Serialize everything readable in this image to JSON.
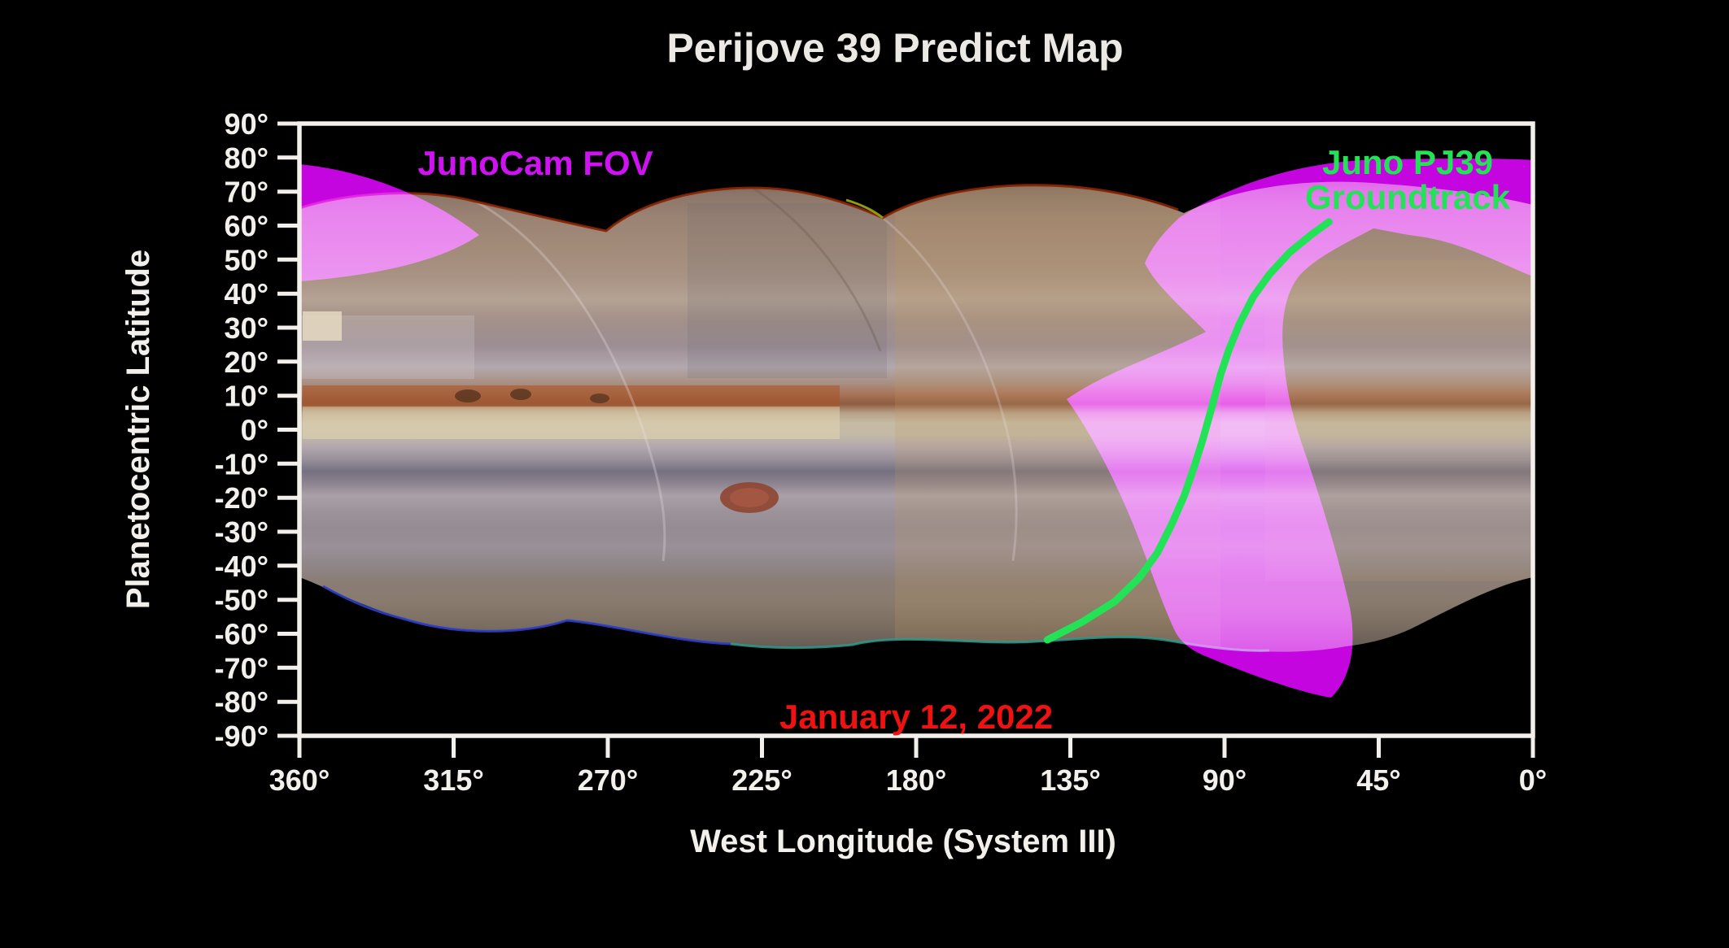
{
  "figure": {
    "title": "Perijove 39 Predict Map",
    "title_color": "#ece9e4"
  },
  "axes": {
    "x_label": "West Longitude (System III)",
    "y_label": "Planetocentric Latitude",
    "label_color": "#f3f0ec",
    "tick_color": "#f3f0ec"
  },
  "annotations": {
    "fov": {
      "label": "JunoCam FOV",
      "color": "#cf12f2"
    },
    "groundtrack": {
      "label_line1": "Juno PJ39",
      "label_line2": "Groundtrack",
      "color": "#22e355"
    },
    "date": {
      "label": "January 12, 2022",
      "color": "#ef1212"
    }
  },
  "chart_data": {
    "type": "line",
    "title": "Perijove 39 Predict Map",
    "xlabel": "West Longitude (System III)",
    "ylabel": "Planetocentric Latitude",
    "xlim": [
      360,
      0
    ],
    "ylim": [
      -90,
      90
    ],
    "grid": false,
    "x_tick_values": [
      360,
      315,
      270,
      225,
      180,
      135,
      90,
      45,
      0
    ],
    "x_tick_labels": [
      "360°",
      "315°",
      "270°",
      "225°",
      "180°",
      "135°",
      "90°",
      "45°",
      "0°"
    ],
    "y_tick_values": [
      90,
      80,
      70,
      60,
      50,
      40,
      30,
      20,
      10,
      0,
      -10,
      -20,
      -30,
      -40,
      -50,
      -60,
      -70,
      -80,
      -90
    ],
    "y_tick_labels": [
      "90°",
      "80°",
      "70°",
      "60°",
      "50°",
      "40°",
      "30°",
      "20°",
      "10°",
      "0°",
      "-10°",
      "-20°",
      "-30°",
      "-40°",
      "-50°",
      "-60°",
      "-70°",
      "-80°",
      "-90°"
    ],
    "series": [
      {
        "name": "Juno PJ39 Groundtrack",
        "color": "#22e355",
        "units": "west longitude (deg), planetocentric latitude (deg)",
        "points": [
          [
            59.5,
            61.1
          ],
          [
            64.5,
            57.5
          ],
          [
            70.9,
            52.2
          ],
          [
            76.8,
            45.8
          ],
          [
            81.6,
            39.1
          ],
          [
            85.6,
            31.2
          ],
          [
            88.7,
            23.6
          ],
          [
            91.1,
            16.4
          ],
          [
            94.0,
            5.6
          ],
          [
            96.3,
            -2.7
          ],
          [
            98.7,
            -10.4
          ],
          [
            101.8,
            -19.5
          ],
          [
            105.4,
            -27.8
          ],
          [
            109.6,
            -36.2
          ],
          [
            114.8,
            -43.4
          ],
          [
            122.0,
            -50.5
          ],
          [
            131.5,
            -56.5
          ],
          [
            141.7,
            -61.8
          ]
        ]
      }
    ],
    "overlays": [
      {
        "name": "JunoCam FOV",
        "color": "#c505e0",
        "description": "Magenta shaded swath of JunoCam field-of-view coverage, spanning the north polar region near 45-90W, curving south across the equator near 100W and ending near the south pole, with an extra wedge at the upper-left map edge"
      }
    ],
    "background": "Jupiter cylindrical projection amateur-image mosaic, latitudes ~-65 to +70 covered",
    "date_annotation": "January 12, 2022"
  }
}
